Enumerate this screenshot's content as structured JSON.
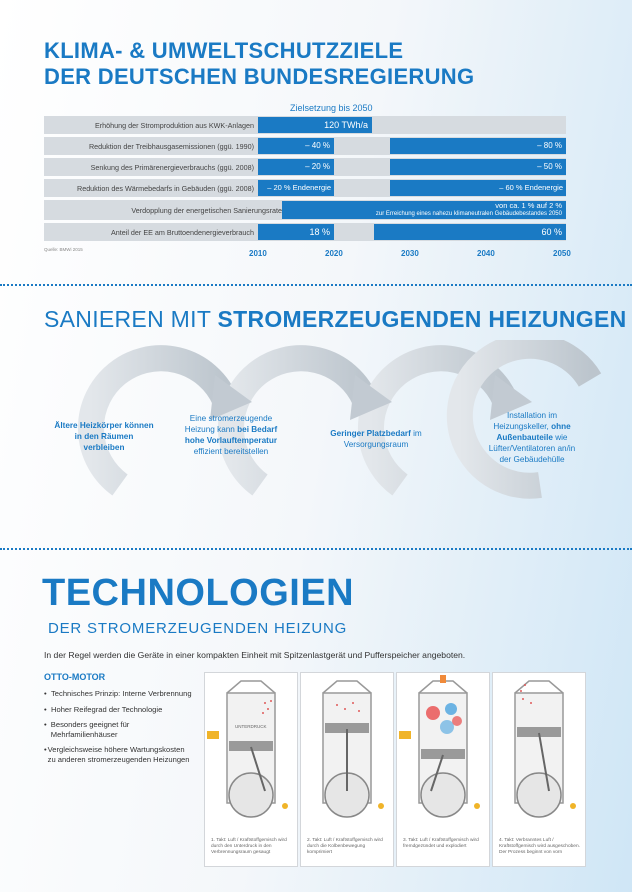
{
  "header": {
    "title_line1": "KLIMA- & UMWELTSCHUTZZIELE",
    "title_line2": "DER DEUTSCHEN BUNDESREGIERUNG"
  },
  "chart": {
    "goal_label": "Zielsetzung bis 2050",
    "source": "Quelle: BMWi 2015",
    "x_ticks": [
      "2010",
      "2020",
      "2030",
      "2040",
      "2050"
    ],
    "rows": [
      {
        "label": "Erhöhung der Stromproduktion aus KWK-Anlagen",
        "bars": [
          {
            "text": "120 TWh/a"
          }
        ]
      },
      {
        "label": "Reduktion der Treibhausgasemissionen (ggü. 1990)",
        "bars": [
          {
            "text": "– 40 %"
          },
          {
            "text": "– 80 %"
          }
        ]
      },
      {
        "label": "Senkung des Primärenergieverbrauchs (ggü. 2008)",
        "bars": [
          {
            "text": "– 20 %"
          },
          {
            "text": "– 50 %"
          }
        ]
      },
      {
        "label": "Reduktion des Wärmebedarfs in Gebäuden (ggü. 2008)",
        "bars": [
          {
            "text": "– 20 % Endenergie"
          },
          {
            "text": "– 60 % Endenergie"
          }
        ]
      },
      {
        "label": "Verdopplung der energetischen Sanierungsrate",
        "bars": [
          {
            "text": "von ca. 1 % auf 2 %"
          },
          {
            "text": "zur Erreichung eines nahezu klimaneutralen Gebäudebestandes 2050"
          }
        ]
      },
      {
        "label": "Anteil der EE am Bruttoendenergieverbrauch",
        "bars": [
          {
            "text": "18 %"
          },
          {
            "text": "60 %"
          }
        ]
      }
    ]
  },
  "section2": {
    "title_light": "SANIEREN MIT ",
    "title_bold": "STROMERZEUGENDEN HEIZUNGEN",
    "cycle": [
      {
        "text": "Ältere Heizkörper können in den Räumen verbleiben"
      },
      {
        "text_a": "Eine stromerzeugende Heizung kann ",
        "text_b": "bei Bedarf hohe Vorlauftemperatur",
        "text_c": " effizient bereitstellen"
      },
      {
        "text_a": "Geringer Platzbedarf",
        "text_b": " im Versorgungsraum"
      },
      {
        "text_a": "Installation im Heizungskeller, ",
        "text_b": "ohne Außenbauteile",
        "text_c": " wie Lüfter/Ventilatoren an/in der Gebäudehülle"
      }
    ]
  },
  "section3": {
    "title": "TECHNOLOGIEN",
    "subtitle": "DER STROMERZEUGENDEN HEIZUNG",
    "intro": "In der Regel werden die Geräte in einer kompakten Einheit mit Spitzenlastgerät und Pufferspeicher angeboten.",
    "otto_title": "OTTO-MOTOR",
    "bullets": [
      "Technisches Prinzip: Interne Verbrennung",
      "Hoher Reifegrad der Technologie",
      "Besonders geeignet für Mehrfamilienhäuser",
      "Vergleichsweise höhere Wartungskosten zu anderen stromerzeugenden Heizungen"
    ],
    "diagram_label": "UNTERDRUCK",
    "captions": [
      "1. Takt: Luft / Kraftstoffgemisch wird durch den Unterdruck in den Verbrennungsraum gesaugt",
      "2. Takt: Luft / Kraftstoffgemisch wird durch die Kolbenbewegung komprimiert",
      "3. Takt: Luft / Kraftstoffgemisch wird fremdgezündet und explodiert",
      "4. Takt: Verbranntes Luft / Kraftstoffgemisch wird ausgeschoben. Der Prozess beginnt von vorn"
    ]
  },
  "colors": {
    "accent": "#1a7ac4",
    "bar_bg": "#d6dbe0",
    "arrow": "#c5ccd3"
  }
}
